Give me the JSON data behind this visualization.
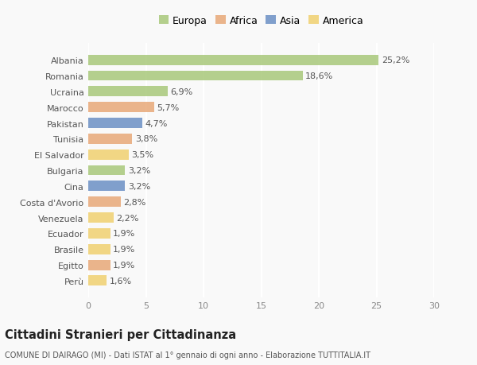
{
  "countries": [
    "Albania",
    "Romania",
    "Ucraina",
    "Marocco",
    "Pakistan",
    "Tunisia",
    "El Salvador",
    "Bulgaria",
    "Cina",
    "Costa d'Avorio",
    "Venezuela",
    "Ecuador",
    "Brasile",
    "Egitto",
    "Perù"
  ],
  "values": [
    25.2,
    18.6,
    6.9,
    5.7,
    4.7,
    3.8,
    3.5,
    3.2,
    3.2,
    2.8,
    2.2,
    1.9,
    1.9,
    1.9,
    1.6
  ],
  "labels": [
    "25,2%",
    "18,6%",
    "6,9%",
    "5,7%",
    "4,7%",
    "3,8%",
    "3,5%",
    "3,2%",
    "3,2%",
    "2,8%",
    "2,2%",
    "1,9%",
    "1,9%",
    "1,9%",
    "1,6%"
  ],
  "continents": [
    "Europa",
    "Europa",
    "Europa",
    "Africa",
    "Asia",
    "Africa",
    "America",
    "Europa",
    "Asia",
    "Africa",
    "America",
    "America",
    "America",
    "Africa",
    "America"
  ],
  "continent_colors": {
    "Europa": "#a8c87a",
    "Africa": "#e8a878",
    "Asia": "#6b8fc4",
    "America": "#f0d070"
  },
  "legend_order": [
    "Europa",
    "Africa",
    "Asia",
    "America"
  ],
  "title": "Cittadini Stranieri per Cittadinanza",
  "subtitle": "COMUNE DI DAIRAGO (MI) - Dati ISTAT al 1° gennaio di ogni anno - Elaborazione TUTTITALIA.IT",
  "xlim": [
    0,
    30
  ],
  "xticks": [
    0,
    5,
    10,
    15,
    20,
    25,
    30
  ],
  "background_color": "#f9f9f9",
  "bar_alpha": 0.85,
  "grid_color": "#ffffff",
  "label_fontsize": 8,
  "tick_fontsize": 8,
  "ytick_fontsize": 8,
  "title_fontsize": 10.5,
  "subtitle_fontsize": 7
}
